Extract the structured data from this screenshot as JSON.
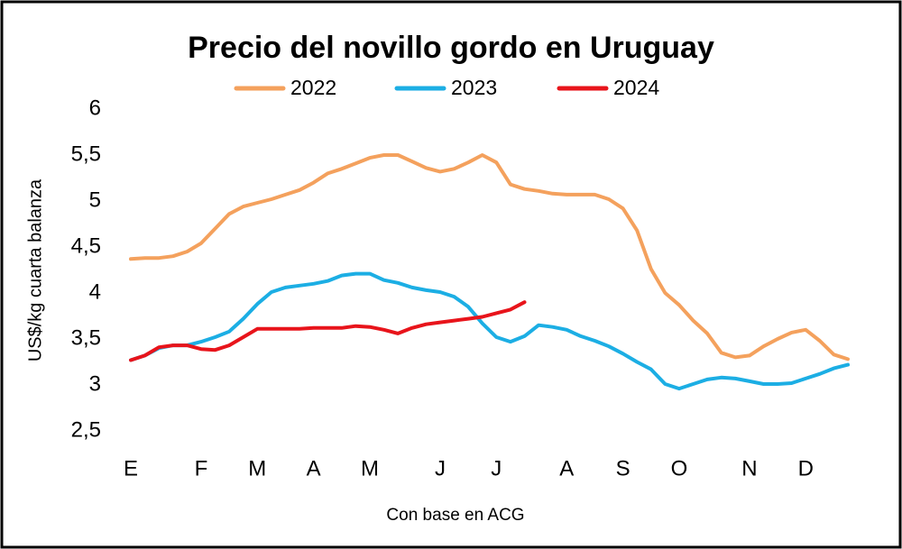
{
  "chart_data": {
    "type": "line",
    "title": "Precio del novillo gordo en Uruguay",
    "y_label": "US$/kg cuarta balanza",
    "x_label": "Con base en ACG",
    "categories": [
      "E",
      null,
      null,
      null,
      null,
      "F",
      null,
      null,
      null,
      "M",
      null,
      null,
      null,
      "A",
      null,
      null,
      null,
      "M",
      null,
      null,
      null,
      null,
      "J",
      null,
      null,
      null,
      "J",
      null,
      null,
      null,
      null,
      "A",
      null,
      null,
      null,
      "S",
      null,
      null,
      null,
      "O",
      null,
      null,
      null,
      null,
      "N",
      null,
      null,
      null,
      "D",
      null,
      null,
      null
    ],
    "series": [
      {
        "name": "2022",
        "color": "#f4a15d",
        "values": [
          4.37,
          4.38,
          4.38,
          4.4,
          4.45,
          4.54,
          4.7,
          4.86,
          4.94,
          4.98,
          5.02,
          5.07,
          5.12,
          5.2,
          5.3,
          5.35,
          5.41,
          5.47,
          5.5,
          5.5,
          5.43,
          5.36,
          5.32,
          5.35,
          5.42,
          5.5,
          5.42,
          5.18,
          5.13,
          5.11,
          5.08,
          5.07,
          5.07,
          5.07,
          5.02,
          4.92,
          4.68,
          4.26,
          4.0,
          3.87,
          3.7,
          3.56,
          3.35,
          3.3,
          3.32,
          3.42,
          3.5,
          3.57,
          3.6,
          3.48,
          3.33,
          3.28
        ]
      },
      {
        "name": "2023",
        "color": "#1caee4",
        "values": [
          3.27,
          3.32,
          3.4,
          3.43,
          3.43,
          3.47,
          3.52,
          3.58,
          3.72,
          3.88,
          4.01,
          4.06,
          4.08,
          4.1,
          4.13,
          4.19,
          4.21,
          4.21,
          4.14,
          4.11,
          4.06,
          4.03,
          4.01,
          3.96,
          3.85,
          3.67,
          3.52,
          3.47,
          3.53,
          3.65,
          3.63,
          3.6,
          3.53,
          3.48,
          3.42,
          3.34,
          3.25,
          3.17,
          3.01,
          2.96,
          3.01,
          3.06,
          3.08,
          3.07,
          3.04,
          3.01,
          3.01,
          3.02,
          3.07,
          3.12,
          3.18,
          3.22
        ]
      },
      {
        "name": "2024",
        "color": "#e8141b",
        "values": [
          3.27,
          3.32,
          3.41,
          3.43,
          3.43,
          3.39,
          3.38,
          3.43,
          3.52,
          3.61,
          3.61,
          3.61,
          3.61,
          3.62,
          3.62,
          3.62,
          3.64,
          3.63,
          3.6,
          3.56,
          3.62,
          3.66,
          3.68,
          3.7,
          3.72,
          3.74,
          3.78,
          3.82,
          3.9,
          null,
          null,
          null,
          null,
          null,
          null,
          null,
          null,
          null,
          null,
          null,
          null,
          null,
          null,
          null,
          null,
          null,
          null,
          null,
          null,
          null,
          null,
          null
        ]
      }
    ],
    "ylim": [
      2.5,
      6
    ],
    "yticks": [
      {
        "value": 2.5,
        "label": "2,5"
      },
      3,
      {
        "value": 3.5,
        "label": "3,5"
      },
      4,
      {
        "value": 4.5,
        "label": "4,5"
      },
      5,
      {
        "value": 5.5,
        "label": "5,5"
      },
      6
    ],
    "grid": false,
    "legend": "top"
  }
}
